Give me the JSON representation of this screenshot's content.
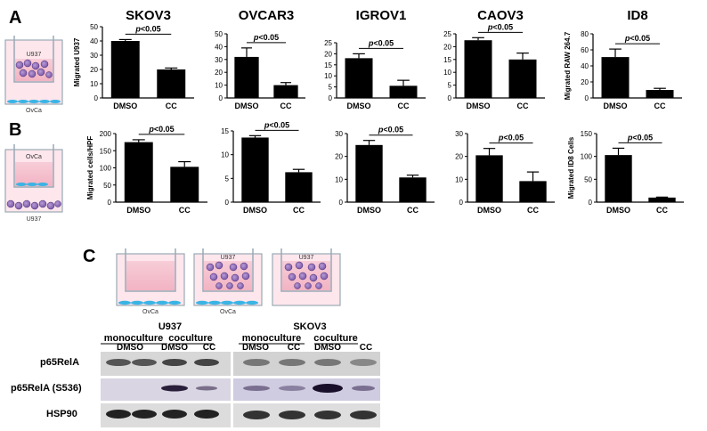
{
  "panel_labels": [
    "A",
    "B",
    "C"
  ],
  "stat_label": "p<0.05",
  "chart_data": [
    {
      "id": "a1",
      "type": "bar",
      "row": "A",
      "title": "SKOV3",
      "ylabel": "Migrated U937",
      "categories": [
        "DMSO",
        "CC"
      ],
      "values": [
        40,
        20
      ],
      "errors": [
        1,
        1
      ],
      "ylim": [
        0,
        50
      ],
      "ticks": [
        0,
        10,
        20,
        30,
        40,
        50
      ]
    },
    {
      "id": "a2",
      "type": "bar",
      "row": "A",
      "title": "OVCAR3",
      "ylabel": "",
      "categories": [
        "DMSO",
        "CC"
      ],
      "values": [
        32,
        10
      ],
      "errors": [
        7,
        2
      ],
      "ylim": [
        0,
        50
      ],
      "ticks": [
        0,
        10,
        20,
        30,
        40,
        50
      ]
    },
    {
      "id": "a3",
      "type": "bar",
      "row": "A",
      "title": "IGROV1",
      "ylabel": "",
      "categories": [
        "DMSO",
        "CC"
      ],
      "values": [
        18,
        5.5
      ],
      "errors": [
        2,
        2.5
      ],
      "ylim": [
        0,
        25
      ],
      "ticks": [
        0,
        5,
        10,
        15,
        20,
        25
      ]
    },
    {
      "id": "a4",
      "type": "bar",
      "row": "A",
      "title": "CAOV3",
      "ylabel": "",
      "categories": [
        "DMSO",
        "CC"
      ],
      "values": [
        22.5,
        15
      ],
      "errors": [
        1,
        2.5
      ],
      "ylim": [
        0,
        25
      ],
      "ticks": [
        0,
        5,
        10,
        15,
        20,
        25
      ]
    },
    {
      "id": "a5",
      "type": "bar",
      "row": "A",
      "title": "ID8",
      "ylabel": "Migrated RAW 264.7",
      "categories": [
        "DMSO",
        "CC"
      ],
      "values": [
        51,
        10
      ],
      "errors": [
        10,
        2
      ],
      "ylim": [
        0,
        80
      ],
      "ticks": [
        0,
        20,
        40,
        60,
        80
      ]
    },
    {
      "id": "b1",
      "type": "bar",
      "row": "B",
      "title": "",
      "ylabel": "Migrated cells/HPF",
      "categories": [
        "DMSO",
        "CC"
      ],
      "values": [
        175,
        103
      ],
      "errors": [
        7,
        15
      ],
      "ylim": [
        0,
        200
      ],
      "ticks": [
        0,
        50,
        100,
        150,
        200
      ]
    },
    {
      "id": "b2",
      "type": "bar",
      "row": "B",
      "title": "",
      "ylabel": "",
      "categories": [
        "DMSO",
        "CC"
      ],
      "values": [
        13.6,
        6.3
      ],
      "errors": [
        0.4,
        0.6
      ],
      "ylim": [
        0,
        15
      ],
      "ticks": [
        0,
        5,
        10,
        15
      ]
    },
    {
      "id": "b3",
      "type": "bar",
      "row": "B",
      "title": "",
      "ylabel": "",
      "categories": [
        "DMSO",
        "CC"
      ],
      "values": [
        25,
        10.8
      ],
      "errors": [
        2,
        1
      ],
      "ylim": [
        0,
        30
      ],
      "ticks": [
        0,
        10,
        20,
        30
      ]
    },
    {
      "id": "b4",
      "type": "bar",
      "row": "B",
      "title": "",
      "ylabel": "",
      "categories": [
        "DMSO",
        "CC"
      ],
      "values": [
        20.5,
        9.2
      ],
      "errors": [
        3,
        4
      ],
      "ylim": [
        0,
        30
      ],
      "ticks": [
        0,
        10,
        20,
        30
      ]
    },
    {
      "id": "b5",
      "type": "bar",
      "row": "B",
      "title": "",
      "ylabel": "Migrated ID8 Cells",
      "categories": [
        "DMSO",
        "CC"
      ],
      "values": [
        103,
        10
      ],
      "errors": [
        15,
        1
      ],
      "ylim": [
        0,
        150
      ],
      "ticks": [
        0,
        50,
        100,
        150
      ]
    }
  ],
  "schematics": {
    "a_top": "U937",
    "a_bottom": "OvCa",
    "b_top": "OvCa",
    "b_bottom": "U937",
    "c1_bottom": "OvCa",
    "c2_top": "U937",
    "c2_bottom": "OvCa",
    "c3_top": "U937"
  },
  "western": {
    "groups": [
      {
        "title": "U937",
        "sub": [
          "monoculture",
          "coculture"
        ],
        "lanes": [
          "DMSO",
          "CC",
          "DMSO",
          "CC"
        ]
      },
      {
        "title": "SKOV3",
        "sub": [
          "monoculture",
          "coculture"
        ],
        "lanes": [
          "DMSO",
          "CC",
          "DMSO",
          "CC"
        ]
      }
    ],
    "rows": [
      "p65RelA",
      "p65RelA (S536)",
      "HSP90"
    ]
  }
}
